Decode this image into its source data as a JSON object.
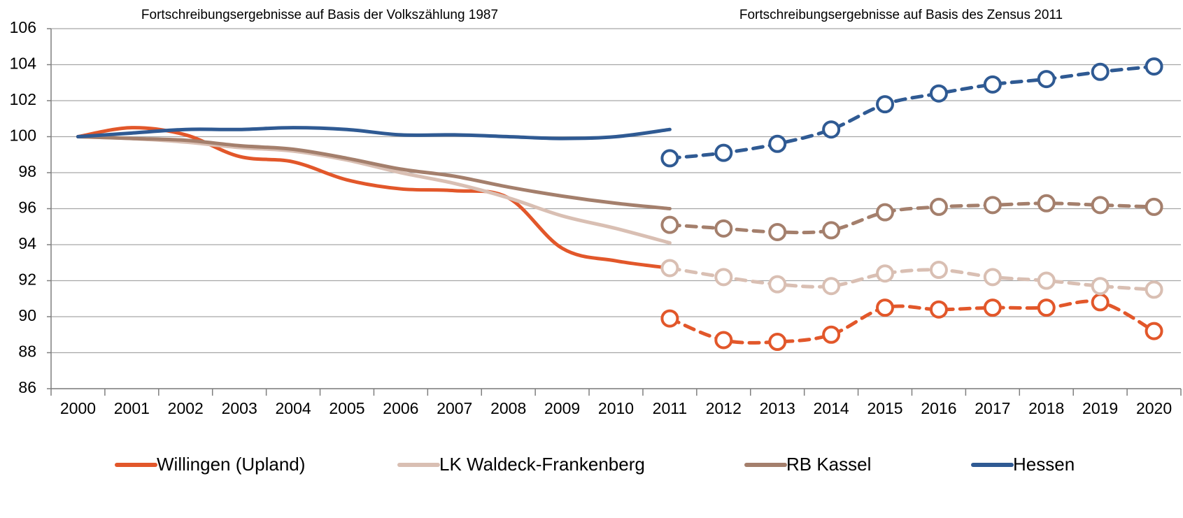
{
  "chart_data": {
    "type": "line",
    "section_titles": [
      "Fortschreibungsergebnisse auf Basis der Volkszählung 1987",
      "Fortschreibungsergebnisse auf Basis des Zensus 2011"
    ],
    "categories": [
      "2000",
      "2001",
      "2002",
      "2003",
      "2004",
      "2005",
      "2006",
      "2007",
      "2008",
      "2009",
      "2010",
      "2011",
      "2012",
      "2013",
      "2014",
      "2015",
      "2016",
      "2017",
      "2018",
      "2019",
      "2020"
    ],
    "ylim": [
      86,
      106
    ],
    "yticks": [
      86,
      88,
      90,
      92,
      94,
      96,
      98,
      100,
      102,
      104,
      106
    ],
    "grid": true,
    "series": [
      {
        "name": "Willingen (Upland)",
        "color": "#e2572a",
        "values": [
          100,
          100.5,
          100.1,
          98.9,
          98.6,
          97.6,
          97.1,
          97.0,
          96.6,
          93.8,
          93.1,
          92.7,
          null,
          null,
          null,
          null,
          null,
          null,
          null,
          null,
          null
        ],
        "census_values": [
          null,
          null,
          null,
          null,
          null,
          null,
          null,
          null,
          null,
          null,
          null,
          89.9,
          88.7,
          88.6,
          89.0,
          90.5,
          90.4,
          90.5,
          90.5,
          90.8,
          89.2
        ]
      },
      {
        "name": "LK Waldeck-Frankenberg",
        "color": "#d9bfb3",
        "values": [
          100,
          99.9,
          99.7,
          99.4,
          99.2,
          98.7,
          98.0,
          97.4,
          96.6,
          95.6,
          94.9,
          94.1,
          null,
          null,
          null,
          null,
          null,
          null,
          null,
          null,
          null
        ],
        "census_values": [
          null,
          null,
          null,
          null,
          null,
          null,
          null,
          null,
          null,
          null,
          null,
          92.7,
          92.2,
          91.8,
          91.7,
          92.4,
          92.6,
          92.2,
          92.0,
          91.7,
          91.5
        ]
      },
      {
        "name": "RB Kassel",
        "color": "#a47f6c",
        "values": [
          100,
          99.9,
          99.8,
          99.5,
          99.3,
          98.8,
          98.2,
          97.8,
          97.2,
          96.7,
          96.3,
          96.0,
          null,
          null,
          null,
          null,
          null,
          null,
          null,
          null,
          null
        ],
        "census_values": [
          null,
          null,
          null,
          null,
          null,
          null,
          null,
          null,
          null,
          null,
          null,
          95.1,
          94.9,
          94.7,
          94.8,
          95.8,
          96.1,
          96.2,
          96.3,
          96.2,
          96.1
        ]
      },
      {
        "name": "Hessen",
        "color": "#2f5a93",
        "values": [
          100,
          100.2,
          100.4,
          100.4,
          100.5,
          100.4,
          100.1,
          100.1,
          100.0,
          99.9,
          100.0,
          100.4,
          null,
          null,
          null,
          null,
          null,
          null,
          null,
          null,
          null
        ],
        "census_values": [
          null,
          null,
          null,
          null,
          null,
          null,
          null,
          null,
          null,
          null,
          null,
          98.8,
          99.1,
          99.6,
          100.4,
          101.8,
          102.4,
          102.9,
          103.2,
          103.6,
          103.9
        ]
      }
    ]
  }
}
